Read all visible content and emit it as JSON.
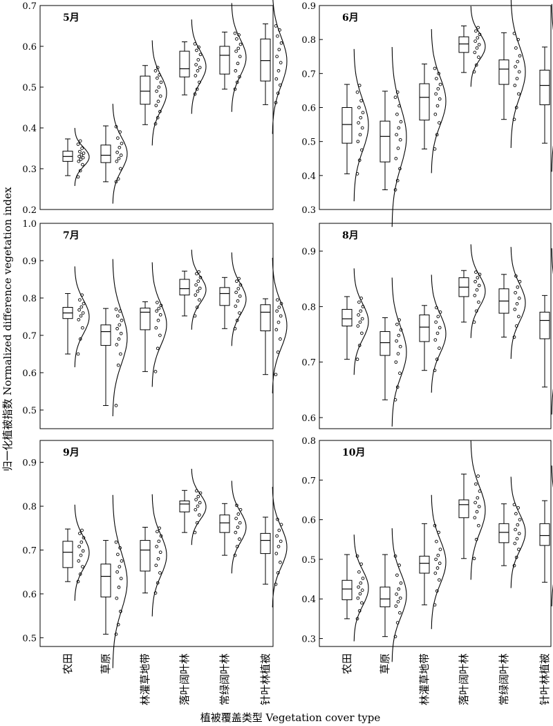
{
  "figure": {
    "ylabel": "归一化植被指数 Normalized difference vegetation index",
    "xlabel": "植被覆盖类型 Vegetation cover type",
    "categories": [
      "农田",
      "草原",
      "林灌草地带",
      "落叶阔叶林",
      "常绿阔叶林",
      "针叶林植被"
    ]
  },
  "chart_data": [
    {
      "type": "box",
      "title": "5月",
      "categories": [
        "农田",
        "草原",
        "林灌草地带",
        "落叶阔叶林",
        "常绿阔叶林",
        "针叶林植被"
      ],
      "ylim": [
        0.2,
        0.7
      ],
      "yticks": [
        0.2,
        0.3,
        0.4,
        0.5,
        0.6,
        0.7
      ],
      "boxes": [
        {
          "min": 0.283,
          "q1": 0.318,
          "median": 0.33,
          "q3": 0.343,
          "max": 0.373,
          "points": [
            0.28,
            0.295,
            0.31,
            0.318,
            0.323,
            0.327,
            0.33,
            0.334,
            0.338,
            0.342,
            0.35,
            0.36,
            0.368
          ]
        },
        {
          "min": 0.268,
          "q1": 0.315,
          "median": 0.333,
          "q3": 0.358,
          "max": 0.405,
          "points": [
            0.268,
            0.275,
            0.3,
            0.318,
            0.325,
            0.333,
            0.34,
            0.352,
            0.362,
            0.375,
            0.39,
            0.403
          ]
        },
        {
          "min": 0.408,
          "q1": 0.458,
          "median": 0.49,
          "q3": 0.527,
          "max": 0.553,
          "points": [
            0.41,
            0.425,
            0.44,
            0.455,
            0.465,
            0.478,
            0.49,
            0.5,
            0.512,
            0.522,
            0.53,
            0.54,
            0.548
          ]
        },
        {
          "min": 0.481,
          "q1": 0.525,
          "median": 0.545,
          "q3": 0.588,
          "max": 0.611,
          "points": [
            0.483,
            0.495,
            0.512,
            0.528,
            0.54,
            0.548,
            0.555,
            0.567,
            0.58,
            0.59,
            0.598,
            0.606
          ]
        },
        {
          "min": 0.495,
          "q1": 0.532,
          "median": 0.578,
          "q3": 0.6,
          "max": 0.635,
          "points": [
            0.495,
            0.512,
            0.525,
            0.54,
            0.558,
            0.575,
            0.588,
            0.595,
            0.605,
            0.618,
            0.628,
            0.632
          ]
        },
        {
          "min": 0.457,
          "q1": 0.515,
          "median": 0.565,
          "q3": 0.618,
          "max": 0.655,
          "points": [
            0.462,
            0.485,
            0.505,
            0.52,
            0.54,
            0.56,
            0.575,
            0.592,
            0.608,
            0.625,
            0.64,
            0.65
          ]
        }
      ]
    },
    {
      "type": "box",
      "title": "6月",
      "categories": [
        "农田",
        "草原",
        "林灌草地带",
        "落叶阔叶林",
        "常绿阔叶林",
        "针叶林植被"
      ],
      "ylim": [
        0.3,
        0.9
      ],
      "yticks": [
        0.3,
        0.4,
        0.5,
        0.6,
        0.7,
        0.8,
        0.9
      ],
      "boxes": [
        {
          "min": 0.405,
          "q1": 0.495,
          "median": 0.55,
          "q3": 0.6,
          "max": 0.668,
          "points": [
            0.405,
            0.445,
            0.475,
            0.5,
            0.52,
            0.54,
            0.555,
            0.57,
            0.585,
            0.6,
            0.62,
            0.645,
            0.665
          ]
        },
        {
          "min": 0.358,
          "q1": 0.44,
          "median": 0.515,
          "q3": 0.56,
          "max": 0.648,
          "points": [
            0.358,
            0.385,
            0.42,
            0.45,
            0.48,
            0.505,
            0.52,
            0.54,
            0.558,
            0.58,
            0.605,
            0.63,
            0.645
          ]
        },
        {
          "min": 0.478,
          "q1": 0.563,
          "median": 0.63,
          "q3": 0.67,
          "max": 0.728,
          "points": [
            0.478,
            0.52,
            0.555,
            0.58,
            0.605,
            0.625,
            0.64,
            0.655,
            0.668,
            0.685,
            0.7,
            0.715
          ]
        },
        {
          "min": 0.703,
          "q1": 0.762,
          "median": 0.787,
          "q3": 0.808,
          "max": 0.84,
          "points": [
            0.705,
            0.725,
            0.748,
            0.762,
            0.775,
            0.785,
            0.795,
            0.805,
            0.815,
            0.825,
            0.835
          ]
        },
        {
          "min": 0.565,
          "q1": 0.668,
          "median": 0.713,
          "q3": 0.74,
          "max": 0.82,
          "points": [
            0.565,
            0.6,
            0.64,
            0.665,
            0.685,
            0.705,
            0.72,
            0.735,
            0.752,
            0.775,
            0.8,
            0.818
          ]
        },
        {
          "min": 0.495,
          "q1": 0.608,
          "median": 0.665,
          "q3": 0.71,
          "max": 0.778,
          "points": [
            0.495,
            0.545,
            0.585,
            0.615,
            0.64,
            0.66,
            0.678,
            0.695,
            0.712,
            0.735,
            0.758,
            0.775
          ]
        }
      ]
    },
    {
      "type": "box",
      "title": "7月",
      "categories": [
        "农田",
        "草原",
        "林灌草地带",
        "落叶阔叶林",
        "常绿阔叶林",
        "针叶林植被"
      ],
      "ylim": [
        0.45,
        1.0
      ],
      "yticks": [
        0.5,
        0.6,
        0.7,
        0.8,
        0.9,
        1.0
      ],
      "boxes": [
        {
          "min": 0.65,
          "q1": 0.745,
          "median": 0.76,
          "q3": 0.775,
          "max": 0.812,
          "points": [
            0.65,
            0.69,
            0.72,
            0.742,
            0.752,
            0.76,
            0.768,
            0.776,
            0.785,
            0.795,
            0.808
          ]
        },
        {
          "min": 0.512,
          "q1": 0.673,
          "median": 0.71,
          "q3": 0.728,
          "max": 0.772,
          "points": [
            0.512,
            0.62,
            0.65,
            0.675,
            0.69,
            0.705,
            0.718,
            0.728,
            0.74,
            0.752,
            0.765,
            0.77
          ]
        },
        {
          "min": 0.603,
          "q1": 0.715,
          "median": 0.762,
          "q3": 0.773,
          "max": 0.79,
          "points": [
            0.603,
            0.665,
            0.7,
            0.72,
            0.74,
            0.755,
            0.765,
            0.772,
            0.78,
            0.788
          ]
        },
        {
          "min": 0.752,
          "q1": 0.808,
          "median": 0.825,
          "q3": 0.85,
          "max": 0.872,
          "points": [
            0.752,
            0.775,
            0.795,
            0.808,
            0.818,
            0.826,
            0.835,
            0.845,
            0.855,
            0.865,
            0.87
          ]
        },
        {
          "min": 0.718,
          "q1": 0.78,
          "median": 0.812,
          "q3": 0.828,
          "max": 0.855,
          "points": [
            0.718,
            0.74,
            0.76,
            0.778,
            0.792,
            0.805,
            0.815,
            0.825,
            0.835,
            0.845,
            0.852
          ]
        },
        {
          "min": 0.595,
          "q1": 0.712,
          "median": 0.762,
          "q3": 0.782,
          "max": 0.798,
          "points": [
            0.595,
            0.655,
            0.69,
            0.715,
            0.735,
            0.752,
            0.765,
            0.775,
            0.785,
            0.795
          ]
        }
      ]
    },
    {
      "type": "box",
      "title": "8月",
      "categories": [
        "农田",
        "草原",
        "林灌草地带",
        "落叶阔叶林",
        "常绿阔叶林",
        "针叶林植被"
      ],
      "ylim": [
        0.58,
        0.95
      ],
      "yticks": [
        0.6,
        0.7,
        0.8,
        0.9
      ],
      "boxes": [
        {
          "min": 0.705,
          "q1": 0.765,
          "median": 0.778,
          "q3": 0.795,
          "max": 0.818,
          "points": [
            0.705,
            0.73,
            0.752,
            0.765,
            0.772,
            0.778,
            0.785,
            0.792,
            0.8,
            0.808,
            0.815
          ]
        },
        {
          "min": 0.632,
          "q1": 0.712,
          "median": 0.735,
          "q3": 0.755,
          "max": 0.78,
          "points": [
            0.632,
            0.655,
            0.68,
            0.7,
            0.715,
            0.728,
            0.738,
            0.748,
            0.758,
            0.768,
            0.776
          ]
        },
        {
          "min": 0.685,
          "q1": 0.737,
          "median": 0.763,
          "q3": 0.785,
          "max": 0.802,
          "points": [
            0.685,
            0.705,
            0.725,
            0.74,
            0.752,
            0.762,
            0.772,
            0.782,
            0.79,
            0.798
          ]
        },
        {
          "min": 0.772,
          "q1": 0.818,
          "median": 0.835,
          "q3": 0.852,
          "max": 0.865,
          "points": [
            0.772,
            0.792,
            0.808,
            0.82,
            0.83,
            0.838,
            0.845,
            0.852,
            0.858,
            0.862
          ]
        },
        {
          "min": 0.745,
          "q1": 0.788,
          "median": 0.81,
          "q3": 0.832,
          "max": 0.858,
          "points": [
            0.745,
            0.765,
            0.782,
            0.795,
            0.805,
            0.815,
            0.825,
            0.835,
            0.845,
            0.855
          ]
        },
        {
          "min": 0.655,
          "q1": 0.742,
          "median": 0.775,
          "q3": 0.79,
          "max": 0.82,
          "points": [
            0.655,
            0.685,
            0.715,
            0.738,
            0.755,
            0.768,
            0.778,
            0.788,
            0.798,
            0.81,
            0.818
          ]
        }
      ]
    },
    {
      "type": "box",
      "title": "9月",
      "categories": [
        "农田",
        "草原",
        "林灌草地带",
        "落叶阔叶林",
        "常绿阔叶林",
        "针叶林植被"
      ],
      "ylim": [
        0.48,
        0.95
      ],
      "yticks": [
        0.5,
        0.6,
        0.7,
        0.8,
        0.9
      ],
      "boxes": [
        {
          "min": 0.628,
          "q1": 0.66,
          "median": 0.695,
          "q3": 0.72,
          "max": 0.748,
          "points": [
            0.628,
            0.645,
            0.662,
            0.675,
            0.688,
            0.698,
            0.708,
            0.718,
            0.728,
            0.738,
            0.745
          ]
        },
        {
          "min": 0.508,
          "q1": 0.593,
          "median": 0.64,
          "q3": 0.668,
          "max": 0.722,
          "points": [
            0.508,
            0.53,
            0.56,
            0.59,
            0.615,
            0.635,
            0.65,
            0.662,
            0.675,
            0.69,
            0.705,
            0.718
          ]
        },
        {
          "min": 0.602,
          "q1": 0.652,
          "median": 0.7,
          "q3": 0.722,
          "max": 0.752,
          "points": [
            0.602,
            0.625,
            0.648,
            0.665,
            0.68,
            0.695,
            0.708,
            0.72,
            0.732,
            0.742,
            0.75
          ]
        },
        {
          "min": 0.74,
          "q1": 0.787,
          "median": 0.805,
          "q3": 0.812,
          "max": 0.836,
          "points": [
            0.74,
            0.762,
            0.78,
            0.792,
            0.8,
            0.808,
            0.815,
            0.822,
            0.83,
            0.835
          ]
        },
        {
          "min": 0.688,
          "q1": 0.74,
          "median": 0.762,
          "q3": 0.78,
          "max": 0.806,
          "points": [
            0.688,
            0.708,
            0.725,
            0.74,
            0.752,
            0.762,
            0.772,
            0.782,
            0.792,
            0.802
          ]
        },
        {
          "min": 0.622,
          "q1": 0.692,
          "median": 0.722,
          "q3": 0.738,
          "max": 0.775,
          "points": [
            0.622,
            0.648,
            0.672,
            0.692,
            0.708,
            0.72,
            0.732,
            0.745,
            0.758,
            0.77
          ]
        }
      ]
    },
    {
      "type": "box",
      "title": "10月",
      "categories": [
        "农田",
        "草原",
        "林灌草地带",
        "落叶阔叶林",
        "常绿阔叶林",
        "针叶林植被"
      ],
      "ylim": [
        0.28,
        0.8
      ],
      "yticks": [
        0.3,
        0.4,
        0.5,
        0.6,
        0.7,
        0.8
      ],
      "boxes": [
        {
          "min": 0.35,
          "q1": 0.398,
          "median": 0.425,
          "q3": 0.447,
          "max": 0.512,
          "points": [
            0.35,
            0.37,
            0.39,
            0.402,
            0.413,
            0.422,
            0.43,
            0.44,
            0.452,
            0.468,
            0.488,
            0.508
          ]
        },
        {
          "min": 0.305,
          "q1": 0.38,
          "median": 0.4,
          "q3": 0.43,
          "max": 0.512,
          "points": [
            0.305,
            0.34,
            0.365,
            0.382,
            0.393,
            0.402,
            0.412,
            0.425,
            0.44,
            0.46,
            0.485,
            0.508
          ]
        },
        {
          "min": 0.385,
          "q1": 0.465,
          "median": 0.49,
          "q3": 0.508,
          "max": 0.59,
          "points": [
            0.385,
            0.42,
            0.448,
            0.465,
            0.478,
            0.49,
            0.5,
            0.51,
            0.525,
            0.545,
            0.568,
            0.585
          ]
        },
        {
          "min": 0.502,
          "q1": 0.605,
          "median": 0.638,
          "q3": 0.65,
          "max": 0.715,
          "points": [
            0.502,
            0.55,
            0.585,
            0.605,
            0.62,
            0.633,
            0.643,
            0.655,
            0.672,
            0.69,
            0.71
          ]
        },
        {
          "min": 0.484,
          "q1": 0.542,
          "median": 0.568,
          "q3": 0.59,
          "max": 0.64,
          "points": [
            0.484,
            0.505,
            0.525,
            0.54,
            0.552,
            0.565,
            0.575,
            0.587,
            0.6,
            0.615,
            0.63,
            0.638
          ]
        },
        {
          "min": 0.442,
          "q1": 0.535,
          "median": 0.56,
          "q3": 0.59,
          "max": 0.648,
          "points": [
            0.442,
            0.48,
            0.508,
            0.528,
            0.545,
            0.558,
            0.57,
            0.585,
            0.6,
            0.615,
            0.632,
            0.645
          ]
        }
      ]
    }
  ]
}
